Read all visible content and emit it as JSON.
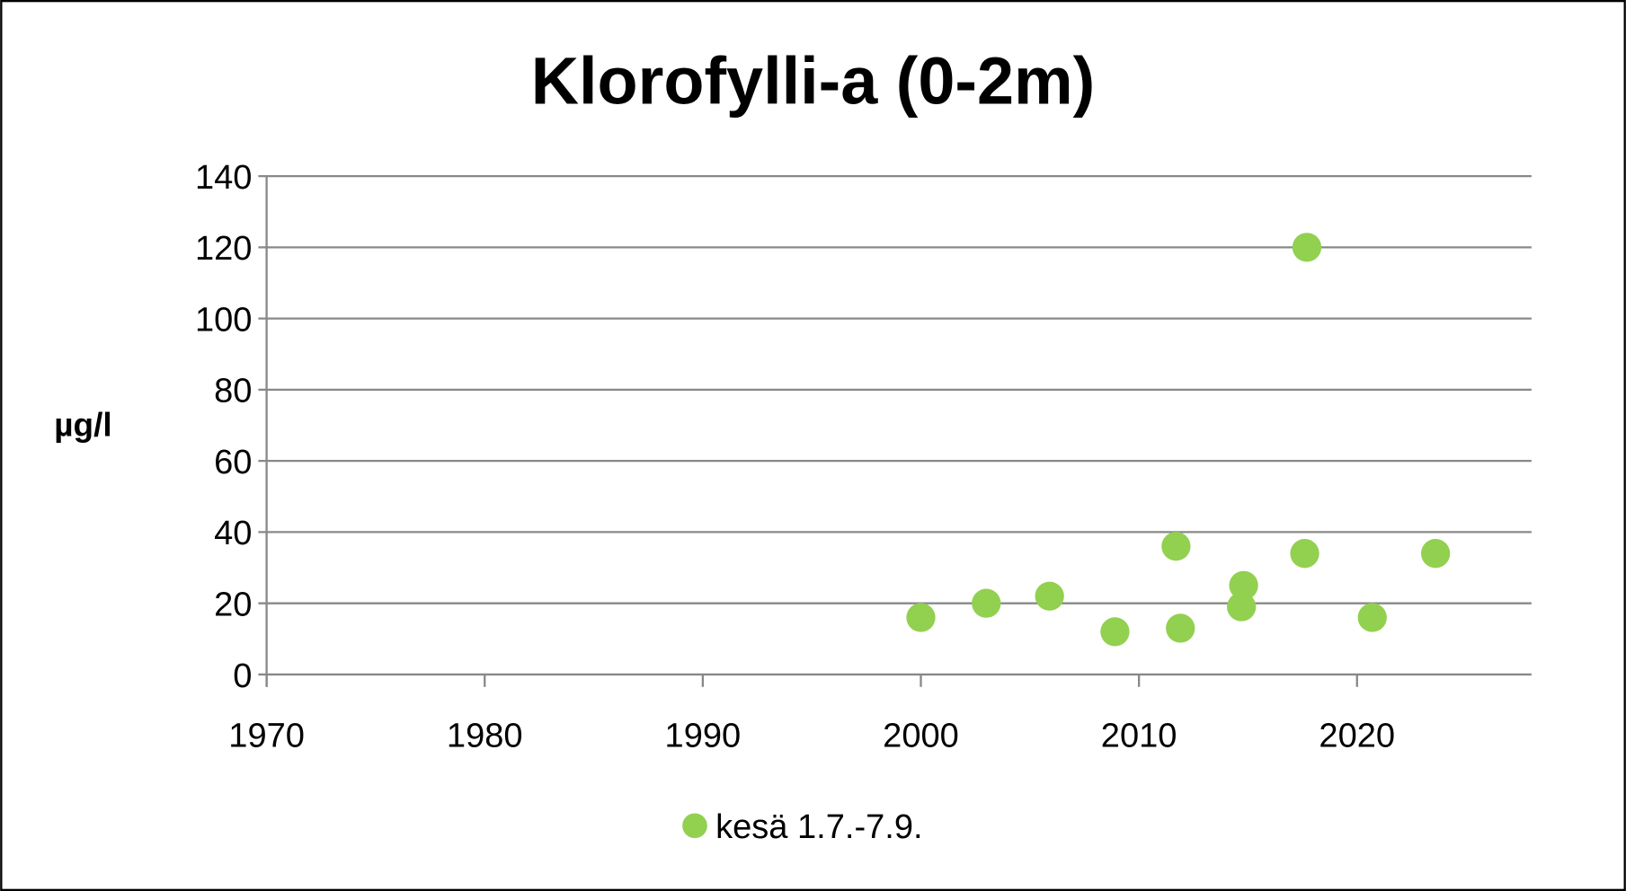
{
  "chart_data": {
    "type": "scatter",
    "title": "Klorofylli-a (0-2m)",
    "xlabel": "",
    "ylabel": "µg/l",
    "xlim": [
      1970,
      2028
    ],
    "ylim": [
      0,
      140
    ],
    "x_ticks": [
      1970,
      1980,
      1990,
      2000,
      2010,
      2020
    ],
    "y_ticks": [
      0,
      20,
      40,
      60,
      80,
      100,
      120,
      140
    ],
    "grid": true,
    "legend_position": "bottom",
    "series": [
      {
        "name": "kesä 1.7.-7.9.",
        "color": "#92d050",
        "x": [
          2000.0,
          2003.0,
          2005.9,
          2008.9,
          2011.7,
          2011.9,
          2014.8,
          2014.7,
          2017.7,
          2017.6,
          2020.7,
          2023.6
        ],
        "y": [
          16,
          20,
          22,
          12,
          36,
          13,
          25,
          19,
          120,
          34,
          16,
          34
        ]
      }
    ]
  }
}
